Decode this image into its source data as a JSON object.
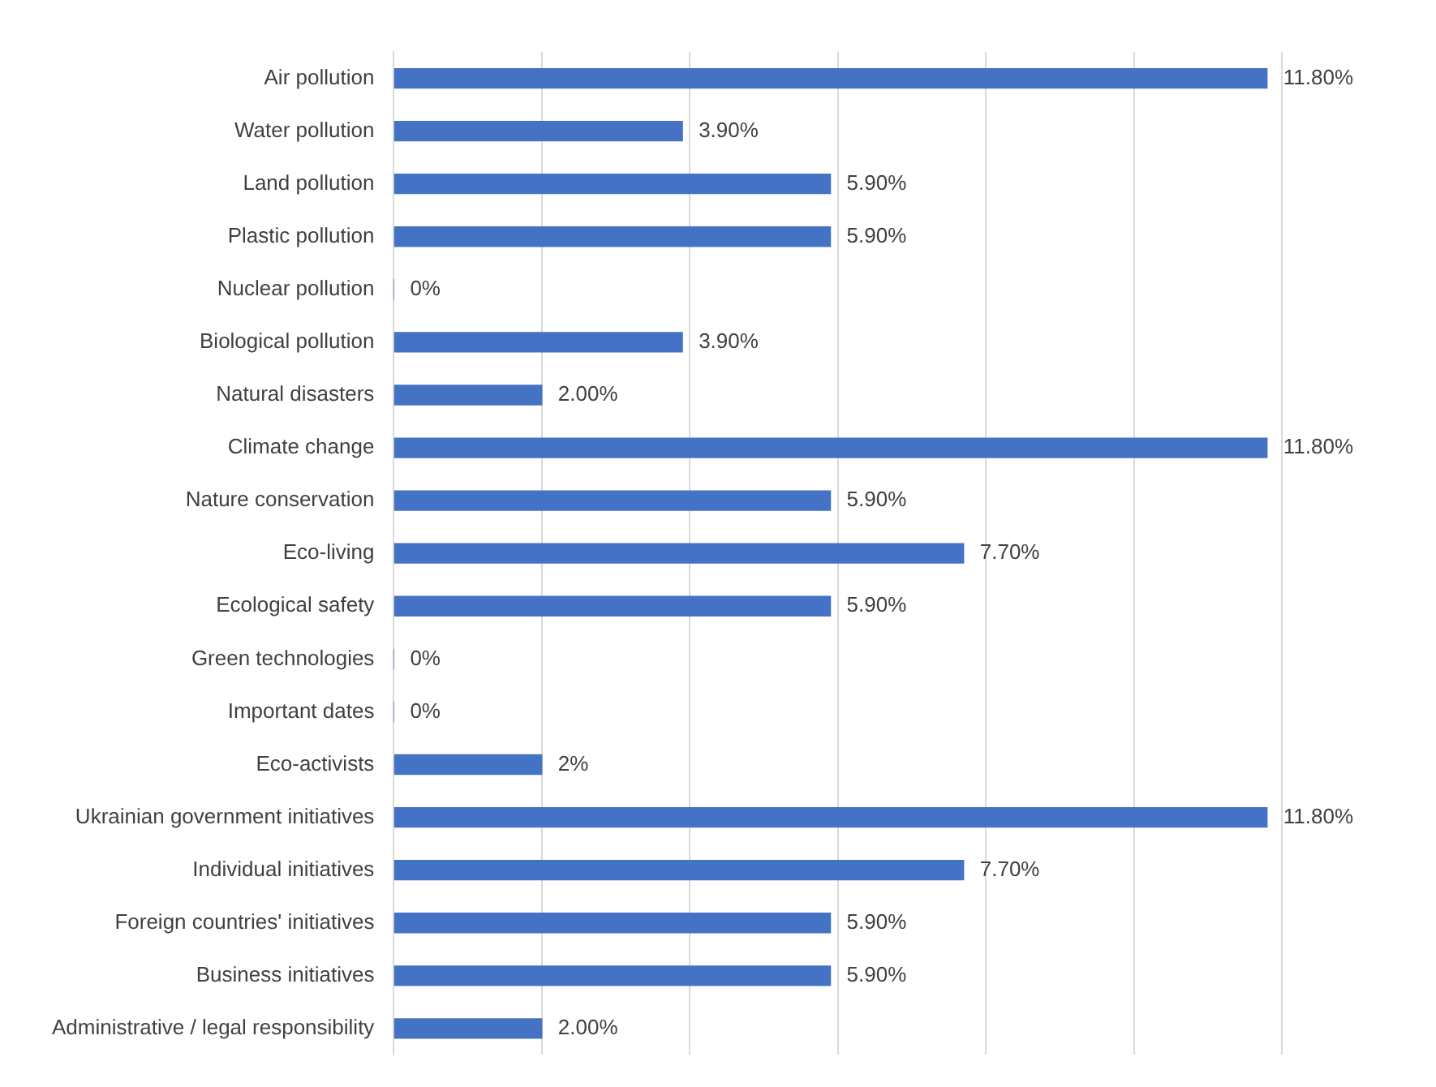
{
  "chart_data": {
    "type": "bar",
    "orientation": "horizontal",
    "categories": [
      "Air pollution",
      "Water pollution",
      "Land pollution",
      "Plastic pollution",
      "Nuclear pollution",
      "Biological pollution",
      "Natural disasters",
      "Climate change",
      "Nature conservation",
      "Eco-living",
      "Ecological safety",
      "Green technologies",
      "Important dates",
      "Eco-activists",
      "Ukrainian government initiatives",
      "Individual initiatives",
      "Foreign countries' initiatives",
      "Business initiatives",
      "Administrative / legal responsibility"
    ],
    "values": [
      11.8,
      3.9,
      5.9,
      5.9,
      0,
      3.9,
      2,
      11.8,
      5.9,
      7.7,
      5.9,
      0,
      0,
      2,
      11.8,
      7.7,
      5.9,
      5.9,
      2
    ],
    "value_labels": [
      "11.80%",
      "3.90%",
      "5.90%",
      "5.90%",
      "0%",
      "3.90%",
      "2.00%",
      "11.80%",
      "5.90%",
      "7.70%",
      "5.90%",
      "0%",
      "0%",
      "2%",
      "11.80%",
      "7.70%",
      "5.90%",
      "5.90%",
      "2.00%"
    ],
    "color": "#4472c4",
    "xlim": [
      0,
      12
    ],
    "xticks": [
      {
        "value": 0,
        "label": null
      },
      {
        "value": 2,
        "label": null
      },
      {
        "value": 4,
        "label": null
      },
      {
        "value": 6,
        "label": null
      },
      {
        "value": 8,
        "label": null
      },
      {
        "value": 10,
        "label": null
      },
      {
        "value": 12,
        "label": null
      }
    ],
    "grid": "x",
    "tick_labels": "y"
  }
}
